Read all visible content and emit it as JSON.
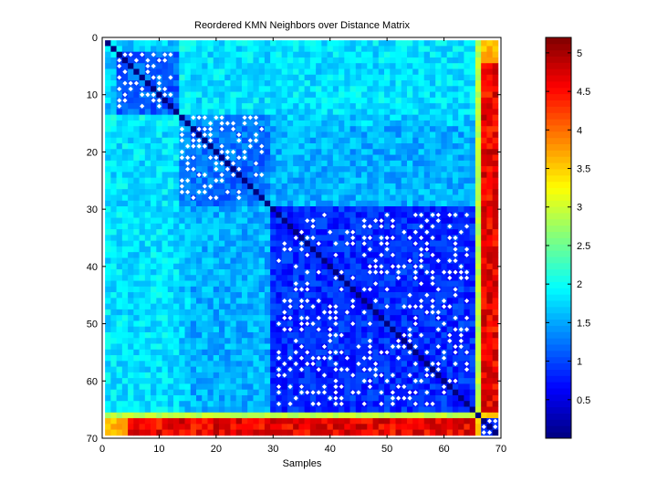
{
  "window": {
    "background": "#ffffff"
  },
  "chart_data": [
    {
      "type": "heatmap",
      "title": "Reordered KMN Neighbors over Distance Matrix",
      "xlabel": "Samples",
      "ylabel": "",
      "xlim": [
        0,
        70
      ],
      "ylim": [
        0,
        70
      ],
      "y_reversed": true,
      "n_samples": 69,
      "x_ticks": [
        "0",
        "10",
        "20",
        "30",
        "40",
        "50",
        "60",
        "70"
      ],
      "y_ticks": [
        "0",
        "10",
        "20",
        "30",
        "40",
        "50",
        "60",
        "70"
      ],
      "colormap": "jet",
      "clim": [
        0,
        5.2
      ],
      "colorbar_ticks": [
        "0.5",
        "1",
        "1.5",
        "2",
        "2.5",
        "3",
        "3.5",
        "4",
        "4.5",
        "5"
      ],
      "neighbor_marker_color": "#ffffff",
      "diagonal_value": 0,
      "approximate_blocks": [
        {
          "rows": [
            1,
            13
          ],
          "cols": [
            1,
            13
          ],
          "distance": 1.1
        },
        {
          "rows": [
            14,
            29
          ],
          "cols": [
            14,
            29
          ],
          "distance": 1.2
        },
        {
          "rows": [
            30,
            64
          ],
          "cols": [
            30,
            64
          ],
          "distance": 0.85
        },
        {
          "rows": [
            67,
            69
          ],
          "cols": [
            67,
            69
          ],
          "distance": 0.9
        },
        {
          "rows": [
            1,
            65
          ],
          "cols": [
            66,
            66
          ],
          "distance": 2.9
        },
        {
          "rows": [
            1,
            65
          ],
          "cols": [
            67,
            69
          ],
          "distance": 4.5
        },
        {
          "rows": [
            1,
            13
          ],
          "cols": [
            1,
            65
          ],
          "distance": 1.9
        },
        {
          "rows": [
            1,
            65
          ],
          "cols": [
            5,
            13
          ],
          "distance": 2.1
        }
      ],
      "neighbor_groups": [
        {
          "rows": [
            3,
            12
          ],
          "cols": [
            3,
            12
          ]
        },
        {
          "rows": [
            14,
            28
          ],
          "cols": [
            14,
            28
          ]
        },
        {
          "rows": [
            31,
            64
          ],
          "cols": [
            31,
            64
          ]
        },
        {
          "rows": [
            67,
            69
          ],
          "cols": [
            67,
            69
          ]
        }
      ]
    },
    {
      "type": "colorbar",
      "ticks": [
        "0.5",
        "1",
        "1.5",
        "2",
        "2.5",
        "3",
        "3.5",
        "4",
        "4.5",
        "5"
      ],
      "range": [
        0,
        5.2
      ]
    }
  ]
}
